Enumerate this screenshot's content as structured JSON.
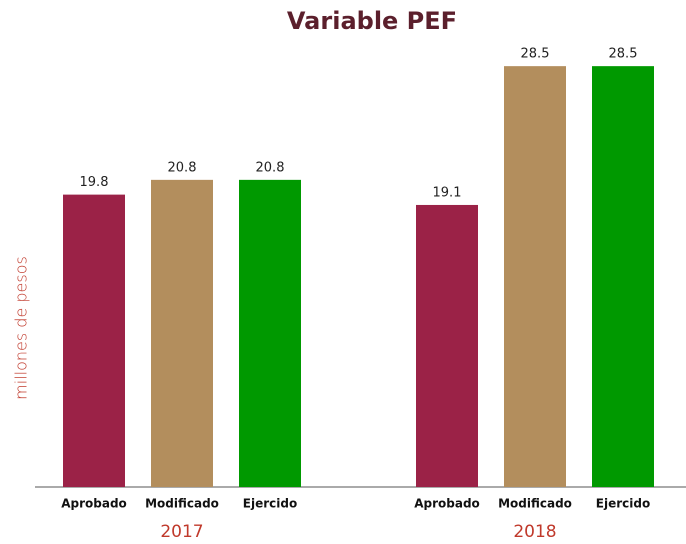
{
  "chart_data": {
    "type": "bar",
    "title": "Variable PEF",
    "y_label": "millones de pesos",
    "categories": [
      "2017",
      "2018"
    ],
    "series": [
      {
        "name": "Aprobado",
        "color": "#9b2247",
        "values": [
          19.8,
          19.1
        ]
      },
      {
        "name": "Modificado",
        "color": "#b38e5d",
        "values": [
          20.8,
          28.5
        ]
      },
      {
        "name": "Ejercido",
        "color": "#009900",
        "values": [
          20.8,
          28.5
        ]
      }
    ],
    "ylim": [
      0,
      30
    ]
  }
}
